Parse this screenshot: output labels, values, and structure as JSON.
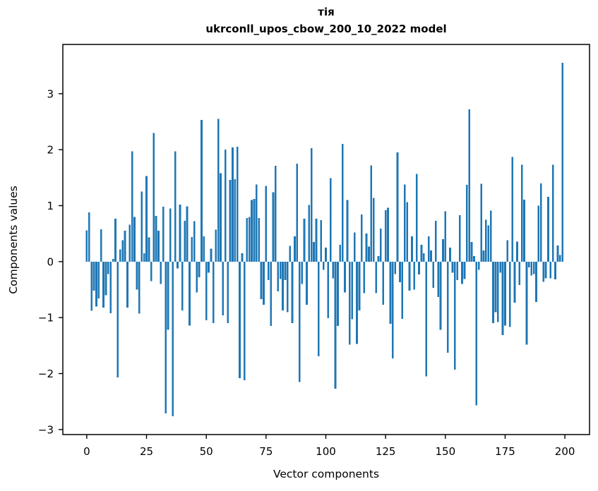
{
  "chart_data": {
    "type": "bar",
    "title_line1": "тія",
    "title_line2": "ukrconll_upos_cbow_200_10_2022 model",
    "xlabel": "Vector components",
    "ylabel": "Components values",
    "x_ticks": [
      0,
      25,
      50,
      75,
      100,
      125,
      150,
      175,
      200
    ],
    "y_ticks": [
      -3,
      -2,
      -1,
      0,
      1,
      2,
      3
    ],
    "xlim": [
      -10,
      210.3
    ],
    "ylim": [
      -3.09,
      3.88
    ],
    "bar_color": "#1f77b4",
    "axis_color": "#000000",
    "background_color": "#ffffff",
    "legend": "none",
    "grid": false,
    "x_start": 0,
    "values": [
      0.56,
      0.88,
      -0.88,
      -0.52,
      -0.8,
      -0.66,
      0.58,
      -0.82,
      -0.6,
      -0.22,
      -0.92,
      0.05,
      0.77,
      -2.07,
      0.22,
      0.38,
      0.55,
      -0.82,
      0.66,
      1.97,
      0.8,
      -0.5,
      -0.93,
      1.25,
      0.15,
      1.53,
      0.43,
      -0.35,
      2.3,
      0.82,
      0.55,
      -0.4,
      0.98,
      -2.71,
      -1.22,
      0.95,
      -2.76,
      1.97,
      -0.12,
      1.02,
      -0.87,
      0.73,
      0.99,
      -1.14,
      0.44,
      0.72,
      -0.55,
      -0.28,
      2.53,
      0.45,
      -1.05,
      -0.2,
      0.23,
      -1.1,
      0.57,
      2.55,
      1.58,
      -0.96,
      2.0,
      -1.1,
      1.46,
      2.04,
      1.47,
      2.05,
      -2.08,
      0.15,
      -2.12,
      0.78,
      0.8,
      1.1,
      1.12,
      1.38,
      0.78,
      -0.67,
      -0.77,
      1.35,
      -0.33,
      -1.15,
      1.24,
      1.71,
      -0.53,
      -0.31,
      -0.87,
      -0.33,
      -0.9,
      0.28,
      -1.1,
      0.45,
      1.75,
      -2.15,
      -0.4,
      0.77,
      -0.77,
      1.01,
      2.03,
      0.35,
      0.77,
      -1.69,
      0.74,
      -0.15,
      0.25,
      -1.01,
      1.49,
      -0.3,
      -2.27,
      -1.15,
      0.3,
      2.1,
      -0.55,
      1.1,
      -1.48,
      -1.03,
      0.52,
      -1.47,
      -0.87,
      0.84,
      -0.56,
      0.5,
      0.27,
      1.72,
      1.14,
      -0.56,
      0.1,
      0.59,
      -0.77,
      0.92,
      0.96,
      -1.11,
      -1.73,
      -0.22,
      1.95,
      -0.37,
      -1.02,
      1.38,
      1.06,
      -0.52,
      0.45,
      -0.5,
      1.57,
      -0.23,
      0.3,
      0.15,
      -2.05,
      0.45,
      0.2,
      -0.47,
      0.73,
      -0.63,
      -1.22,
      0.4,
      0.9,
      -1.63,
      0.25,
      -0.2,
      -1.93,
      -0.33,
      0.83,
      -0.4,
      -0.31,
      1.37,
      2.72,
      0.35,
      0.1,
      -2.57,
      -0.15,
      1.39,
      0.2,
      0.75,
      0.65,
      0.91,
      -1.1,
      -0.9,
      -1.08,
      -0.2,
      -1.31,
      -1.14,
      0.38,
      -1.17,
      1.87,
      -0.73,
      0.36,
      -0.42,
      1.73,
      1.11,
      -1.48,
      -0.1,
      -0.25,
      -0.22,
      -0.72,
      1.0,
      1.4,
      -0.36,
      -0.3,
      1.16,
      -0.3,
      1.73,
      -0.32,
      0.29,
      0.12,
      3.55
    ]
  }
}
